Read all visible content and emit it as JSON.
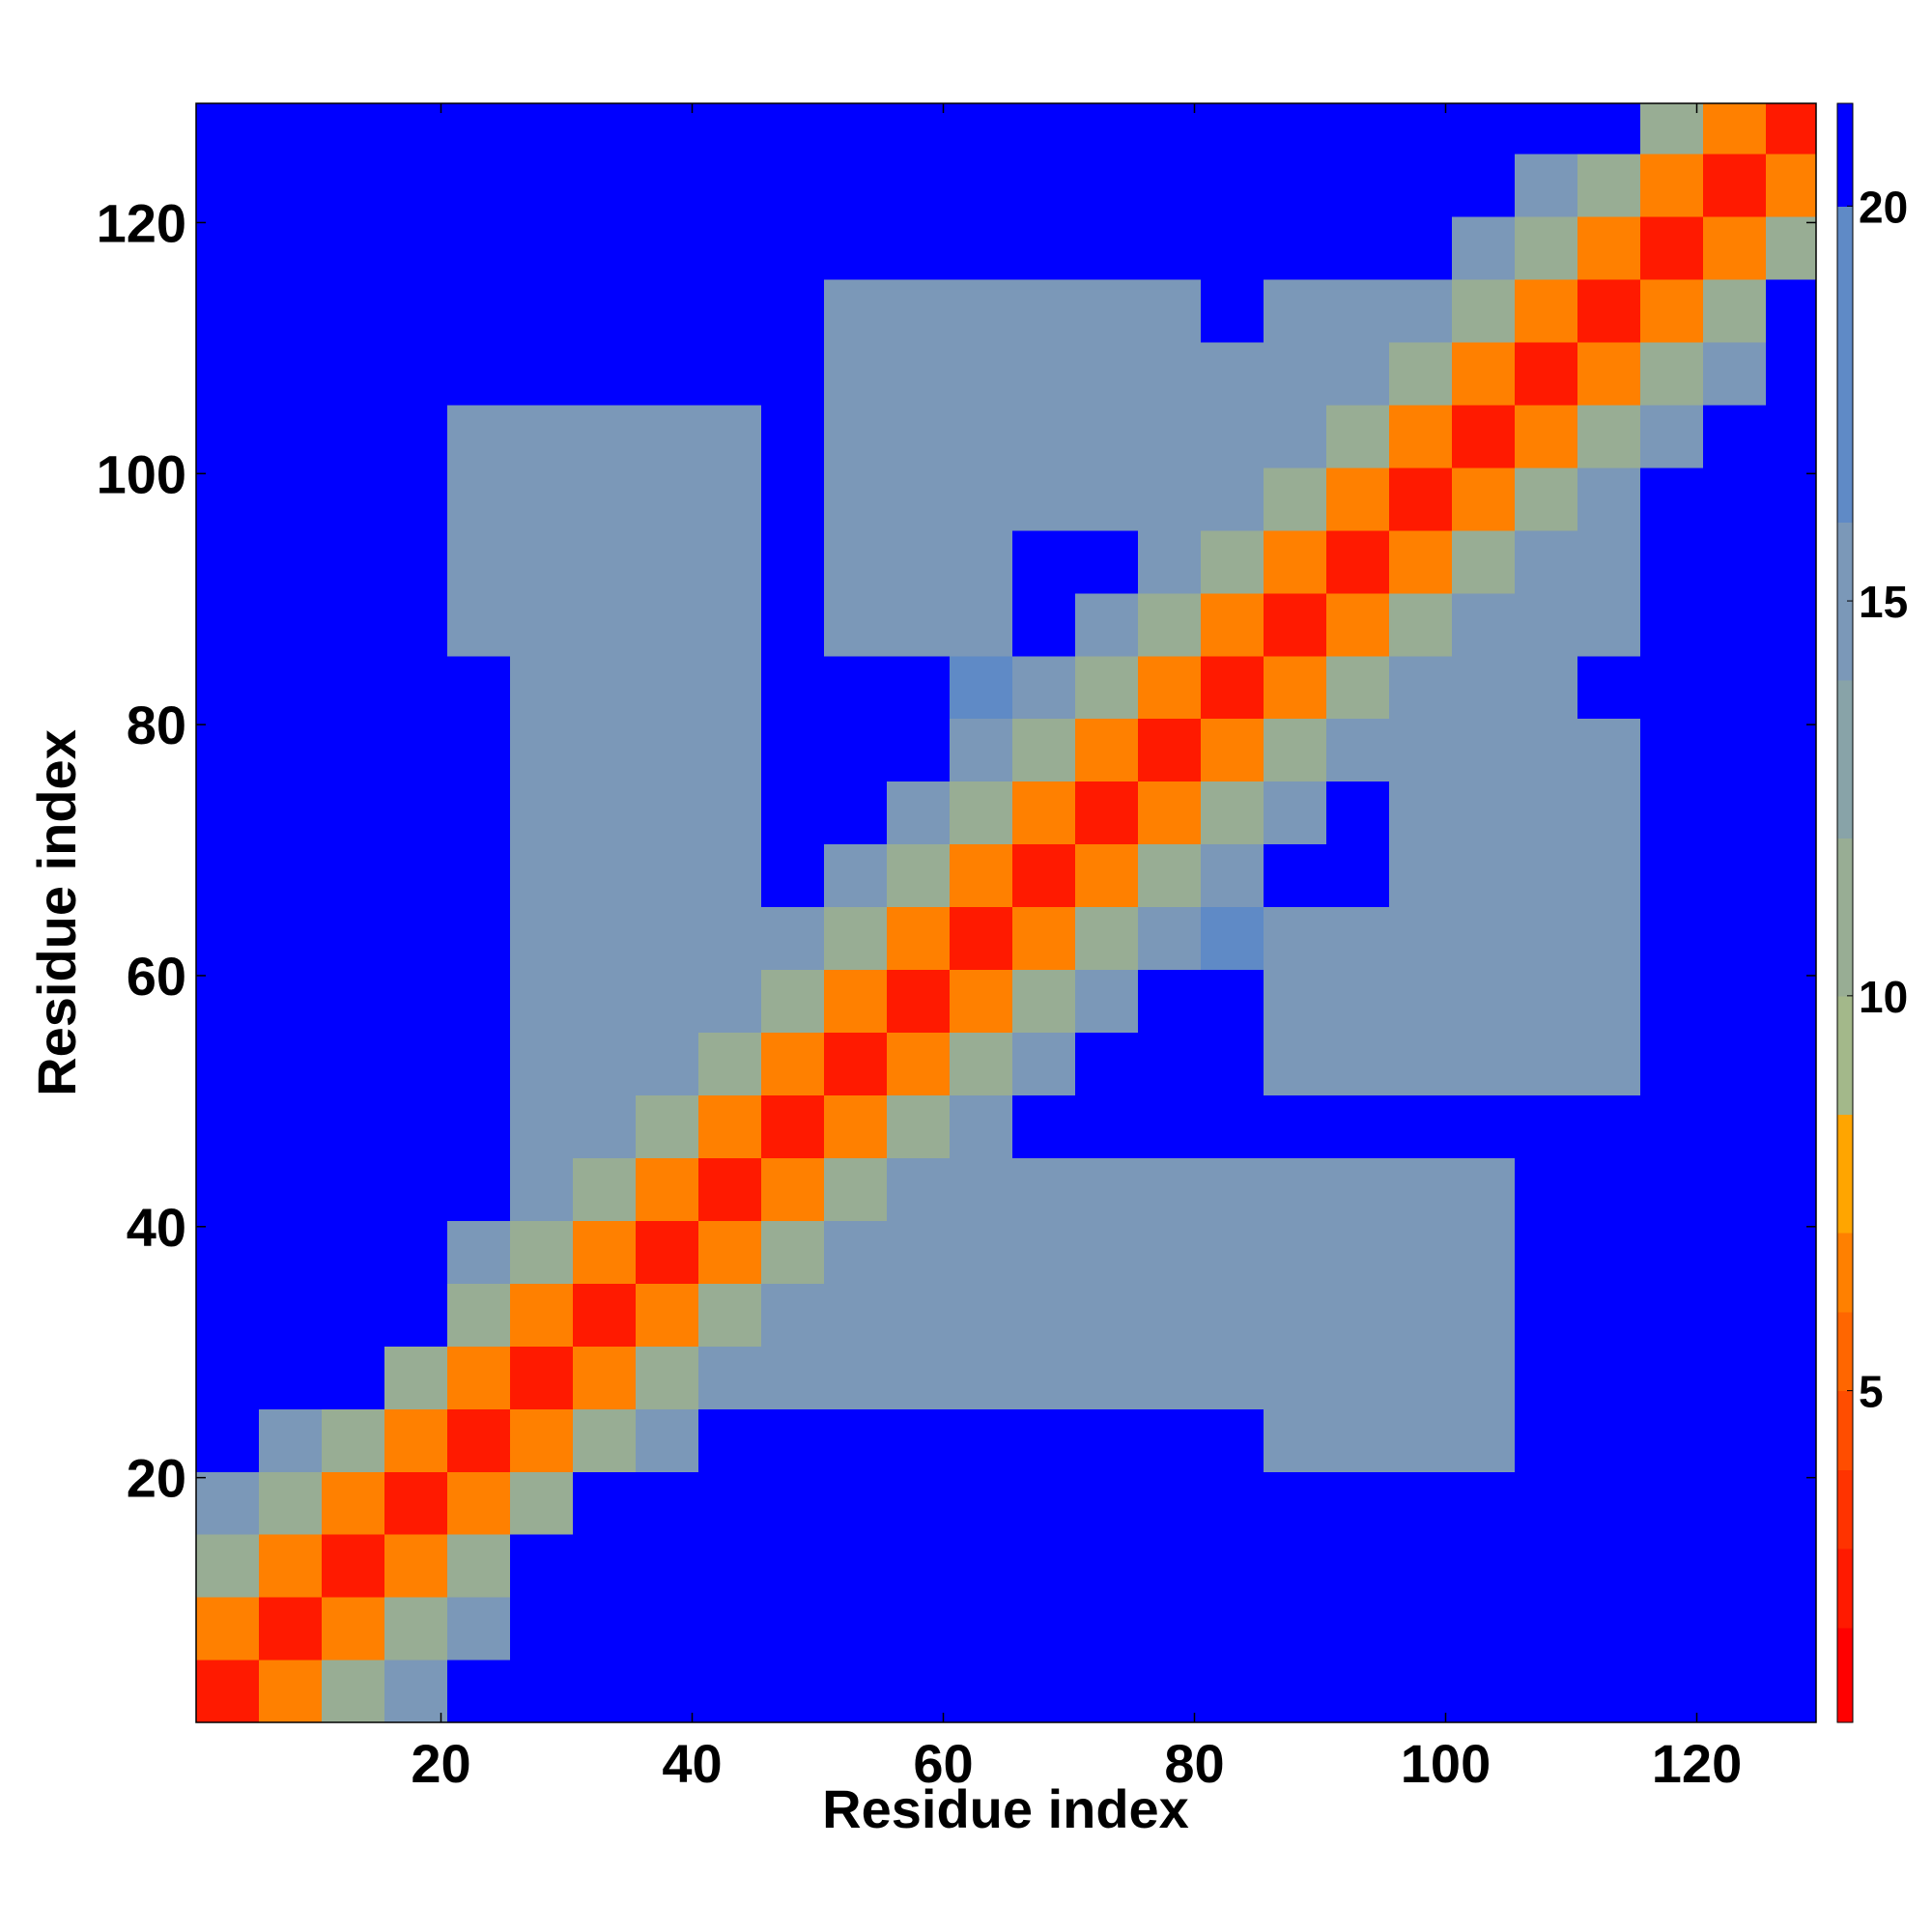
{
  "chart_data": {
    "type": "heatmap",
    "xlabel": "Residue index",
    "ylabel": "Residue index",
    "xlim": [
      0.5,
      129.5
    ],
    "ylim": [
      0.5,
      129.5
    ],
    "xticks": [
      20,
      40,
      60,
      80,
      100,
      120
    ],
    "yticks": [
      20,
      40,
      60,
      80,
      100,
      120
    ],
    "bins": [
      0.5,
      5.5,
      10.5,
      15.5,
      20.5,
      25.5,
      30.5,
      35.5,
      40.5,
      45.5,
      50.5,
      55.5,
      60.5,
      65.5,
      70.5,
      75.5,
      80.5,
      85.5,
      90.5,
      95.5,
      100.5,
      105.5,
      110.5,
      115.5,
      120.5,
      125.5,
      129.5
    ],
    "z": [
      [
        2,
        6,
        11,
        15,
        21,
        21,
        21,
        21,
        21,
        21,
        21,
        21,
        21,
        21,
        21,
        21,
        21,
        21,
        21,
        21,
        21,
        21,
        21,
        21,
        21,
        21
      ],
      [
        6,
        2,
        6,
        11,
        15,
        21,
        21,
        21,
        21,
        21,
        21,
        21,
        21,
        21,
        21,
        21,
        21,
        21,
        21,
        21,
        21,
        21,
        21,
        21,
        21,
        21
      ],
      [
        11,
        6,
        2,
        6,
        11,
        21,
        21,
        21,
        21,
        21,
        21,
        21,
        21,
        21,
        21,
        21,
        21,
        21,
        21,
        21,
        21,
        21,
        21,
        21,
        21,
        21
      ],
      [
        15,
        11,
        6,
        2,
        6,
        11,
        21,
        21,
        21,
        21,
        21,
        21,
        21,
        21,
        21,
        21,
        21,
        21,
        21,
        21,
        21,
        21,
        21,
        21,
        21,
        21
      ],
      [
        21,
        15,
        11,
        6,
        2,
        6,
        11,
        14,
        21,
        21,
        21,
        21,
        21,
        21,
        21,
        21,
        21,
        15,
        15,
        15,
        15,
        21,
        21,
        21,
        21,
        21
      ],
      [
        21,
        21,
        21,
        11,
        6,
        2,
        6,
        11,
        14,
        14,
        14,
        14,
        14,
        14,
        14,
        14,
        14,
        15,
        15,
        15,
        15,
        21,
        21,
        21,
        21,
        21
      ],
      [
        21,
        21,
        21,
        21,
        11,
        6,
        2,
        6,
        11,
        14,
        14,
        14,
        14,
        14,
        14,
        14,
        14,
        15,
        15,
        15,
        15,
        21,
        21,
        21,
        21,
        21
      ],
      [
        21,
        21,
        21,
        21,
        14,
        11,
        6,
        2,
        6,
        11,
        14,
        14,
        14,
        14,
        14,
        14,
        14,
        15,
        15,
        15,
        15,
        21,
        21,
        21,
        21,
        21
      ],
      [
        21,
        21,
        21,
        21,
        21,
        14,
        11,
        6,
        2,
        6,
        11,
        14,
        14,
        14,
        14,
        14,
        14,
        15,
        15,
        15,
        15,
        21,
        21,
        21,
        21,
        21
      ],
      [
        21,
        21,
        21,
        21,
        21,
        14,
        14,
        11,
        6,
        2,
        6,
        11,
        14,
        21,
        21,
        21,
        21,
        21,
        21,
        21,
        21,
        21,
        21,
        21,
        21,
        21
      ],
      [
        21,
        21,
        21,
        21,
        21,
        14,
        14,
        14,
        11,
        6,
        2,
        6,
        11,
        14,
        21,
        21,
        21,
        15,
        15,
        15,
        15,
        15,
        15,
        21,
        21,
        21
      ],
      [
        21,
        21,
        21,
        21,
        21,
        14,
        14,
        14,
        14,
        11,
        6,
        2,
        6,
        11,
        14,
        21,
        21,
        15,
        15,
        15,
        15,
        15,
        15,
        21,
        21,
        21
      ],
      [
        21,
        21,
        21,
        21,
        21,
        14,
        14,
        14,
        14,
        14,
        11,
        6,
        2,
        6,
        11,
        14,
        17,
        15,
        15,
        15,
        15,
        15,
        15,
        21,
        21,
        21
      ],
      [
        21,
        21,
        21,
        21,
        21,
        14,
        14,
        14,
        14,
        21,
        14,
        11,
        6,
        2,
        6,
        11,
        14,
        21,
        21,
        15,
        15,
        15,
        15,
        21,
        21,
        21
      ],
      [
        21,
        21,
        21,
        21,
        21,
        14,
        14,
        14,
        14,
        21,
        21,
        14,
        11,
        6,
        2,
        6,
        11,
        14,
        21,
        15,
        15,
        15,
        15,
        21,
        21,
        21
      ],
      [
        21,
        21,
        21,
        21,
        21,
        14,
        14,
        14,
        14,
        21,
        21,
        21,
        14,
        11,
        6,
        2,
        6,
        11,
        14,
        15,
        15,
        15,
        15,
        21,
        21,
        21
      ],
      [
        21,
        21,
        21,
        21,
        21,
        14,
        14,
        14,
        14,
        21,
        21,
        21,
        17,
        14,
        11,
        6,
        2,
        6,
        11,
        14,
        15,
        15,
        21,
        21,
        21,
        21
      ],
      [
        21,
        21,
        21,
        21,
        15,
        15,
        15,
        15,
        15,
        21,
        15,
        15,
        15,
        21,
        14,
        11,
        6,
        2,
        6,
        11,
        14,
        15,
        15,
        21,
        21,
        21
      ],
      [
        21,
        21,
        21,
        21,
        15,
        15,
        15,
        15,
        15,
        21,
        15,
        15,
        15,
        21,
        21,
        14,
        11,
        6,
        2,
        6,
        11,
        14,
        15,
        21,
        21,
        21
      ],
      [
        21,
        21,
        21,
        21,
        15,
        15,
        15,
        15,
        15,
        21,
        15,
        15,
        15,
        15,
        15,
        15,
        14,
        11,
        6,
        2,
        6,
        11,
        14,
        21,
        21,
        21
      ],
      [
        21,
        21,
        21,
        21,
        15,
        15,
        15,
        15,
        15,
        21,
        15,
        15,
        15,
        15,
        15,
        15,
        15,
        14,
        11,
        6,
        2,
        6,
        11,
        14,
        21,
        21
      ],
      [
        21,
        21,
        21,
        21,
        21,
        21,
        21,
        21,
        21,
        21,
        15,
        15,
        15,
        15,
        15,
        15,
        15,
        15,
        14,
        11,
        6,
        2,
        6,
        11,
        14,
        21
      ],
      [
        21,
        21,
        21,
        21,
        21,
        21,
        21,
        21,
        21,
        21,
        15,
        15,
        15,
        15,
        15,
        15,
        21,
        15,
        15,
        14,
        11,
        6,
        2,
        6,
        11,
        21
      ],
      [
        21,
        21,
        21,
        21,
        21,
        21,
        21,
        21,
        21,
        21,
        21,
        21,
        21,
        21,
        21,
        21,
        21,
        21,
        21,
        21,
        14,
        11,
        6,
        2,
        6,
        11
      ],
      [
        21,
        21,
        21,
        21,
        21,
        21,
        21,
        21,
        21,
        21,
        21,
        21,
        21,
        21,
        21,
        21,
        21,
        21,
        21,
        21,
        21,
        14,
        11,
        6,
        2,
        6
      ],
      [
        21,
        21,
        21,
        21,
        21,
        21,
        21,
        21,
        21,
        21,
        21,
        21,
        21,
        21,
        21,
        21,
        21,
        21,
        21,
        21,
        21,
        21,
        21,
        11,
        6,
        2
      ]
    ],
    "clim": [
      0.8,
      21.3
    ],
    "cticks": [
      5,
      10,
      15,
      20
    ],
    "levels": [
      0.8,
      2,
      3,
      4,
      5,
      6,
      7,
      8.5,
      10,
      12,
      14,
      16,
      20,
      21.3
    ],
    "level_colors": [
      "#ff0000",
      "#ff1a00",
      "#ff3300",
      "#ff4d00",
      "#ff6600",
      "#ff8000",
      "#ffa500",
      "#a3b88a",
      "#98ad94",
      "#88a3a8",
      "#7b98b8",
      "#5f8ac6",
      "#0000ff"
    ]
  }
}
